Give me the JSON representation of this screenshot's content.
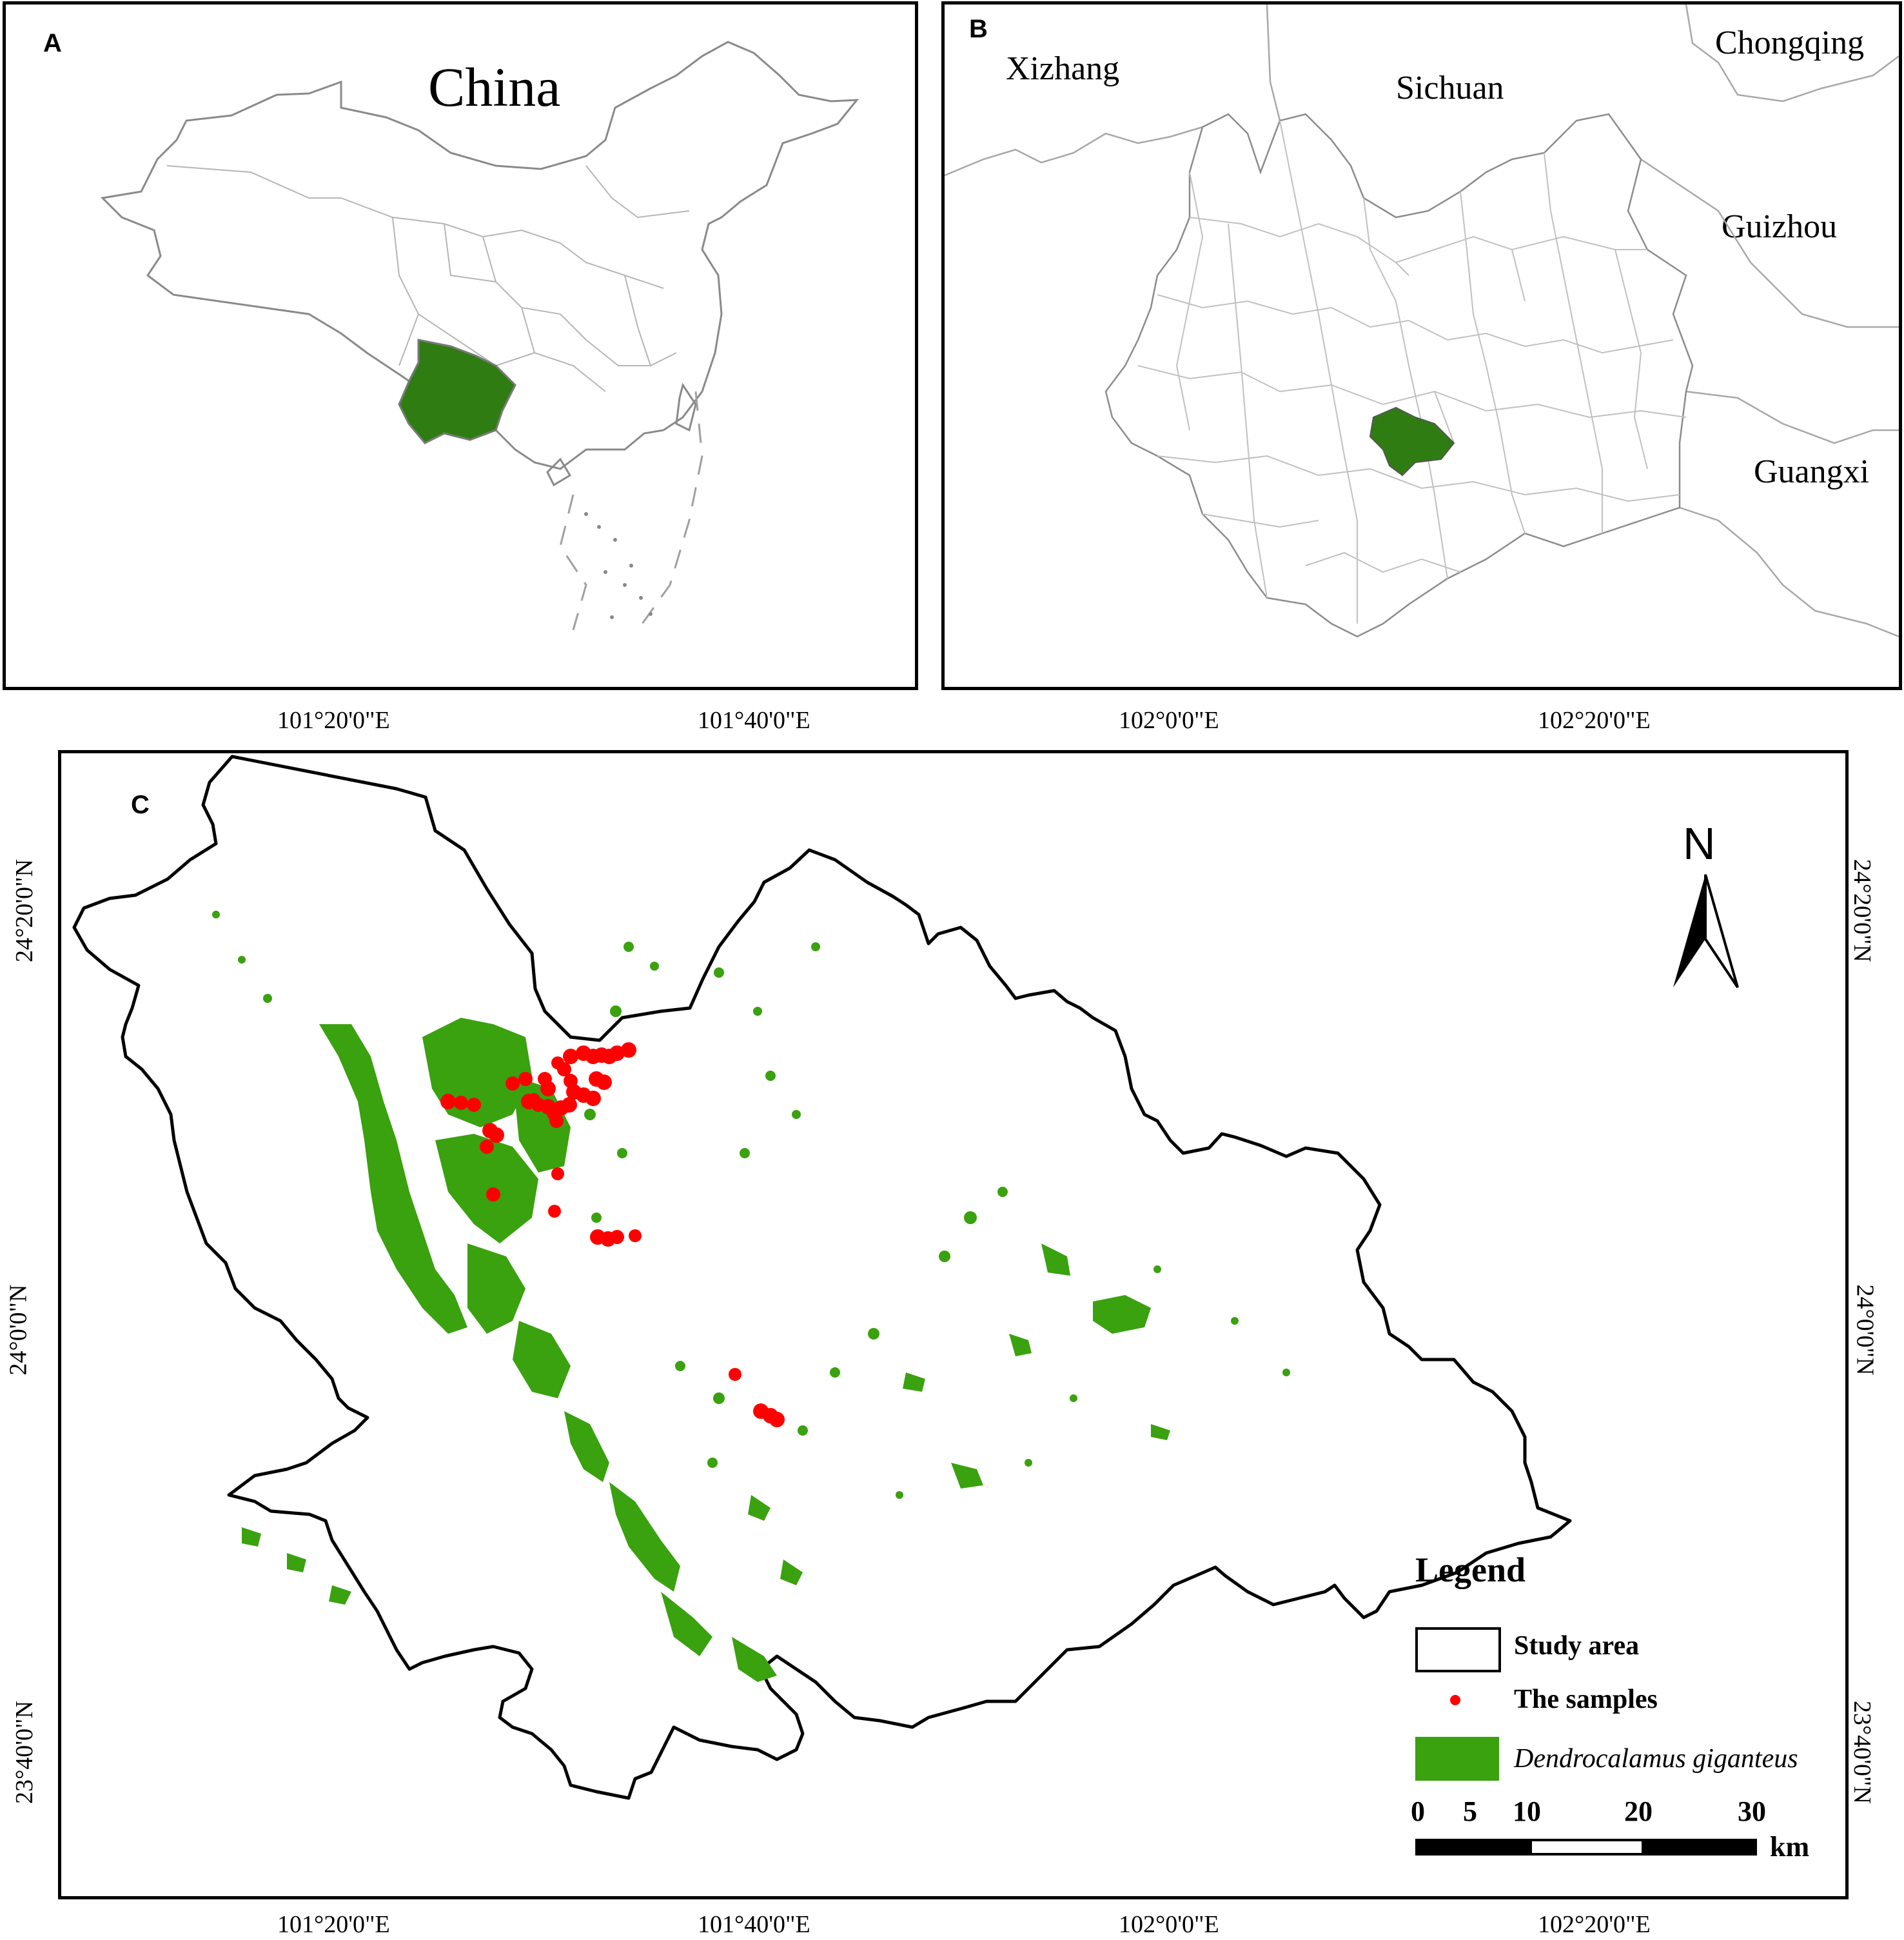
{
  "panel_a": {
    "label": "A",
    "title": "China",
    "highlight_color": "#2f7d12"
  },
  "panel_b": {
    "label": "B",
    "regions": [
      "Xizhang",
      "Sichuan",
      "Chongqing",
      "Guizhou",
      "Guangxi"
    ],
    "highlight_color": "#2f7d12"
  },
  "panel_c": {
    "label": "C",
    "north_arrow": "N",
    "top_ticks": [
      "101°20'0\"E",
      "101°40'0\"E",
      "102°0'0\"E",
      "102°20'0\"E"
    ],
    "bottom_ticks": [
      "101°20'0\"E",
      "101°40'0\"E",
      "102°0'0\"E",
      "102°20'0\"E"
    ],
    "left_ticks": [
      "24°20'0\"N",
      "24°0'0\"N",
      "23°40'0\"N"
    ],
    "right_ticks": [
      "24°20'0\"N",
      "24°0'0\"N",
      "23°40'0\"N"
    ],
    "legend": {
      "title": "Legend",
      "study_area": "Study area",
      "samples": "The samples",
      "species": "Dendrocalamus giganteus",
      "sample_color": "#ff0000",
      "species_color": "#3aa10f"
    },
    "scale_bar": {
      "ticks": [
        "0",
        "5",
        "10",
        "20",
        "30"
      ],
      "unit": "km"
    }
  }
}
